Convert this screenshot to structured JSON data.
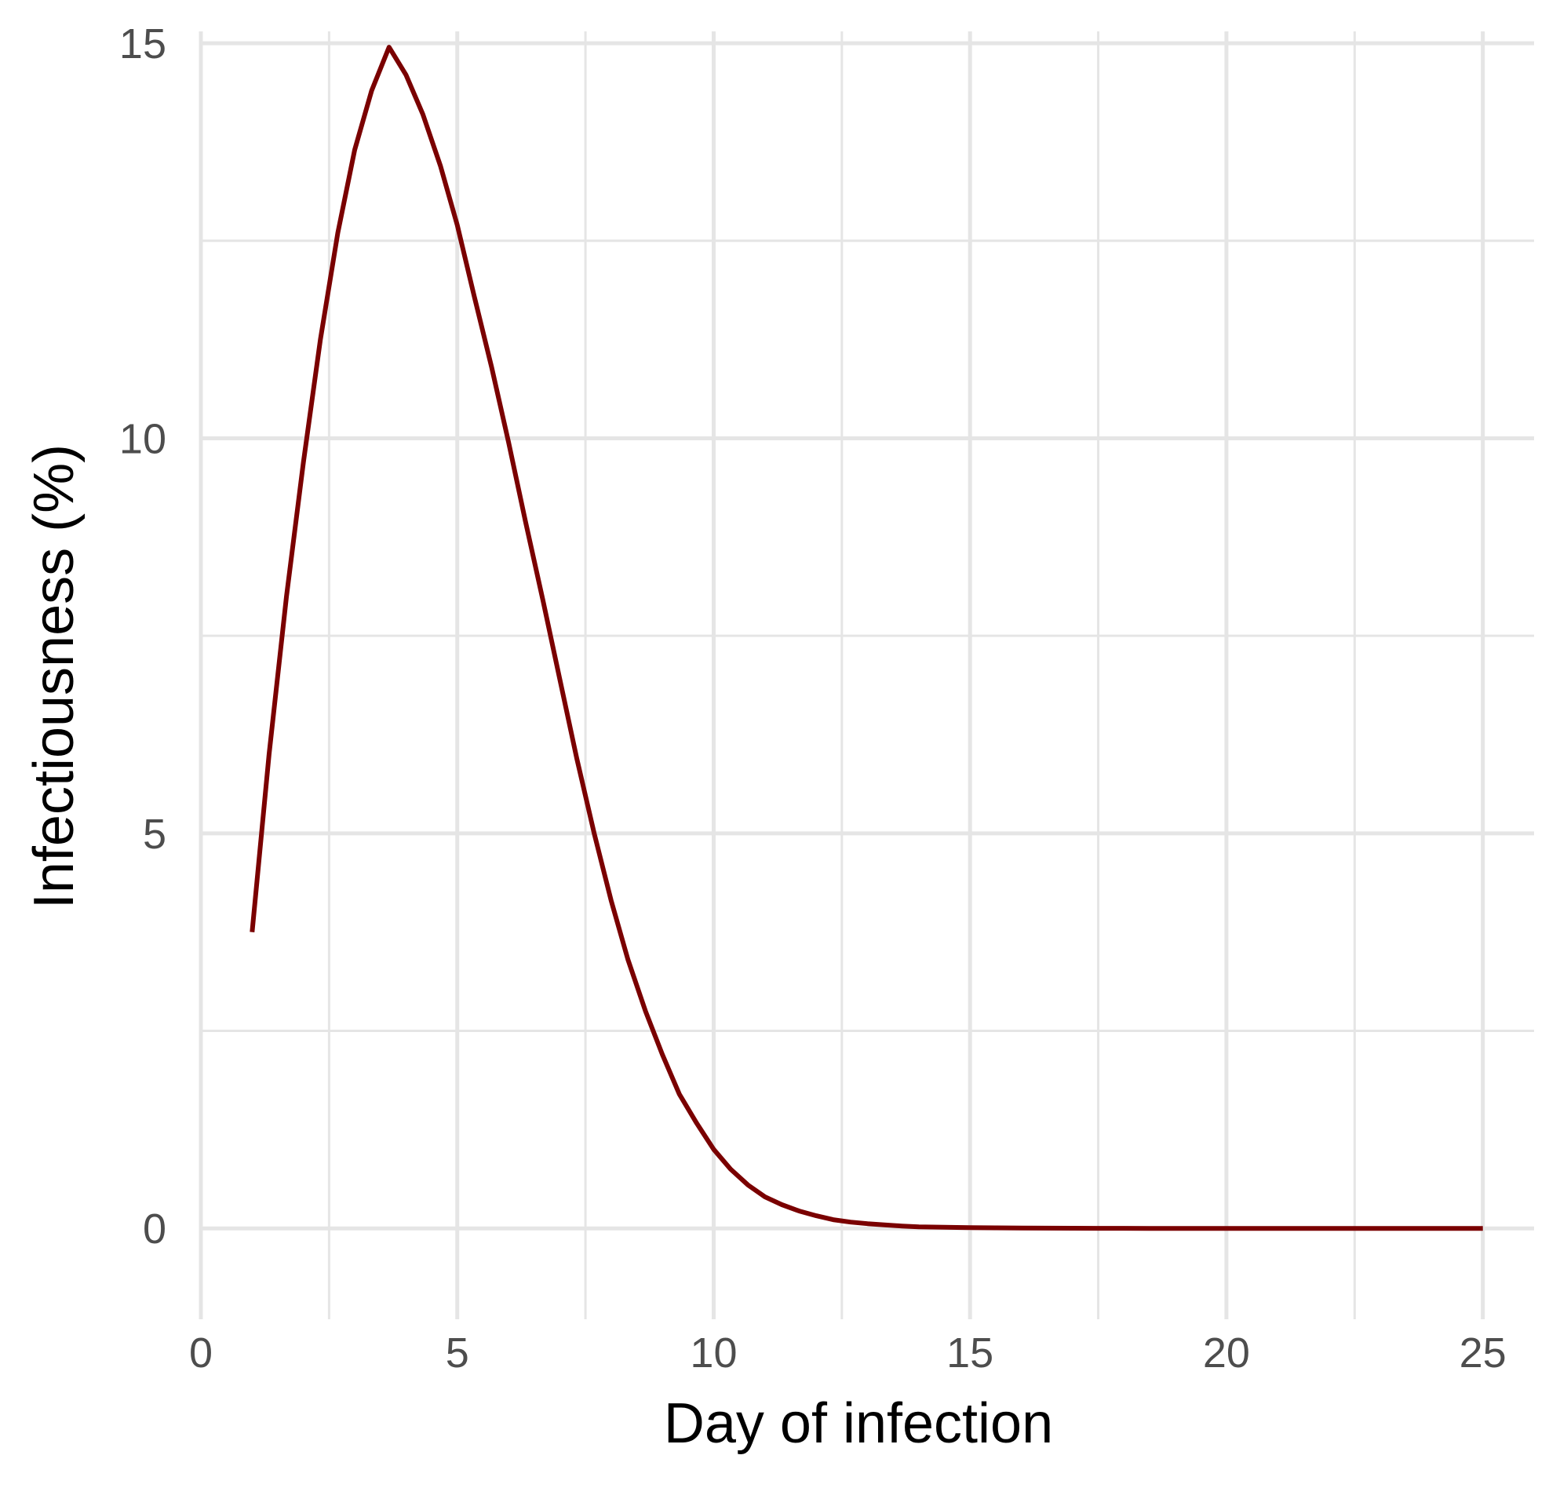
{
  "chart_data": {
    "type": "line",
    "title": "",
    "xlabel": "Day of infection",
    "ylabel": "Infectiousness (%)",
    "xlim": [
      0,
      26
    ],
    "ylim": [
      -1.15,
      15.15
    ],
    "x_ticks": [
      0,
      5,
      10,
      15,
      20,
      25
    ],
    "x_tick_labels": [
      "0",
      "5",
      "10",
      "15",
      "20",
      "25"
    ],
    "y_ticks": [
      0,
      5,
      10,
      15
    ],
    "y_tick_labels": [
      "0",
      "5",
      "10",
      "15"
    ],
    "x_minor_ticks": [
      2.5,
      7.5,
      12.5,
      17.5,
      22.5
    ],
    "y_minor_ticks": [
      2.5,
      7.5,
      12.5
    ],
    "grid": true,
    "legend": "none",
    "colors": {
      "line": "#7a0000",
      "grid": "#e5e5e5",
      "tick_text": "#4d4d4d",
      "axis_title": "#000000"
    },
    "series": [
      {
        "x": [
          1,
          1.33,
          1.67,
          2,
          2.33,
          2.67,
          3,
          3.33,
          3.67,
          4,
          4.33,
          4.67,
          5,
          5.33,
          5.67,
          6,
          6.33,
          6.67,
          7,
          7.33,
          7.67,
          8,
          8.33,
          8.67,
          9,
          9.33,
          9.67,
          10,
          10.33,
          10.67,
          11,
          11.33,
          11.67,
          12,
          12.33,
          12.67,
          13,
          13.33,
          13.67,
          14,
          14.5,
          15,
          15.5,
          16,
          16.5,
          17,
          17.5,
          18,
          18.5,
          19,
          20,
          21,
          22,
          23,
          24,
          25
        ],
        "y": [
          3.75,
          6.0,
          8.0,
          9.7,
          11.25,
          12.6,
          13.65,
          14.4,
          14.95,
          14.6,
          14.1,
          13.45,
          12.7,
          11.8,
          10.9,
          9.95,
          8.95,
          7.95,
          6.95,
          5.95,
          5.0,
          4.15,
          3.4,
          2.75,
          2.2,
          1.7,
          1.33,
          1.0,
          0.75,
          0.55,
          0.4,
          0.3,
          0.22,
          0.16,
          0.11,
          0.08,
          0.06,
          0.045,
          0.03,
          0.02,
          0.015,
          0.01,
          0.007,
          0.005,
          0.003,
          0.002,
          0.001,
          0.001,
          0.0,
          0.0,
          0.0,
          0.0,
          0.0,
          0.0,
          0.0,
          0.0
        ]
      }
    ]
  }
}
